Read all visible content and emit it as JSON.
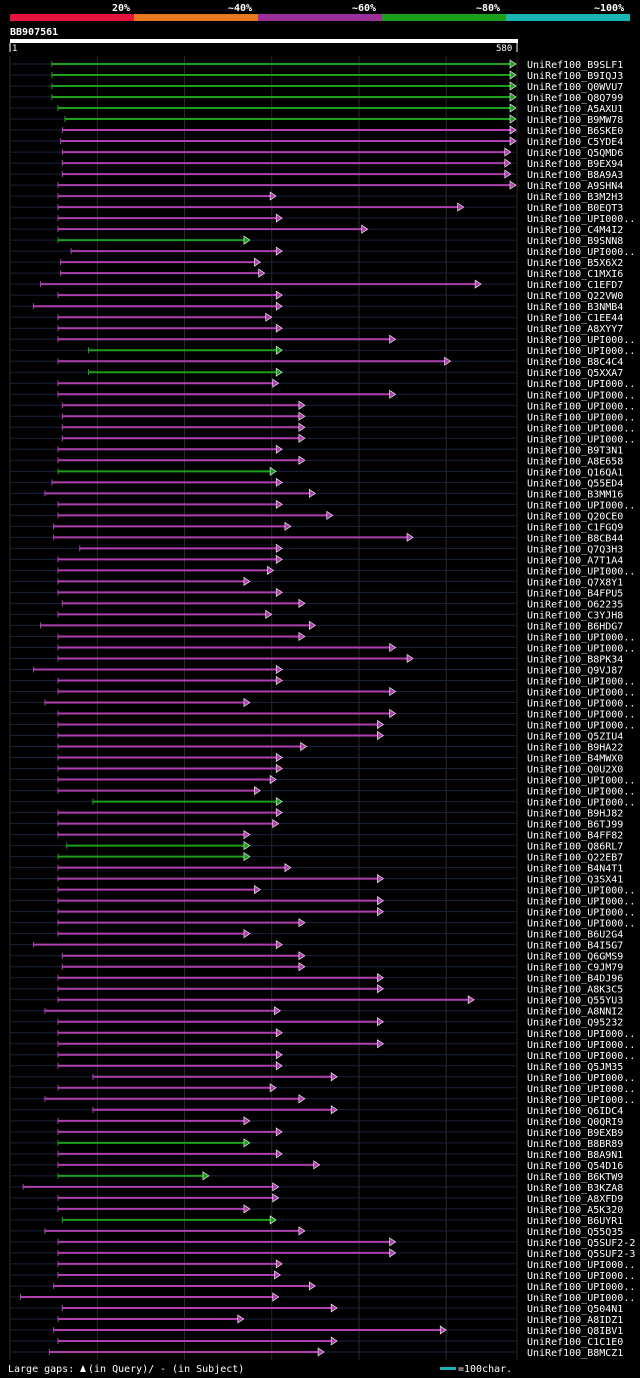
{
  "query": {
    "id": "BB907561",
    "length_start": "1",
    "length_end": "580"
  },
  "scale_labels": [
    "20%",
    "~40%",
    "~60%",
    "~80%",
    "~100%"
  ],
  "scale_colors": [
    "#e6143c",
    "#e8781e",
    "#9a2f9a",
    "#1aa01a",
    "#19b4b4"
  ],
  "line_colors": {
    "high": "#1aa01a",
    "mid": "#b040b0"
  },
  "hits": [
    {
      "name": "UniRef100_B9SLF1",
      "start": 48,
      "end": 580,
      "color": "high"
    },
    {
      "name": "UniRef100_B9IQJ3",
      "start": 48,
      "end": 580,
      "color": "high"
    },
    {
      "name": "UniRef100_Q0WVU7",
      "start": 48,
      "end": 580,
      "color": "high"
    },
    {
      "name": "UniRef100_Q8Q799",
      "start": 48,
      "end": 580,
      "color": "high"
    },
    {
      "name": "UniRef100_A5AXU1",
      "start": 55,
      "end": 580,
      "color": "high"
    },
    {
      "name": "UniRef100_B9MW78",
      "start": 63,
      "end": 580,
      "color": "high"
    },
    {
      "name": "UniRef100_B6SKE0",
      "start": 60,
      "end": 580,
      "color": "mid"
    },
    {
      "name": "UniRef100_C5YDE4",
      "start": 58,
      "end": 580,
      "color": "mid"
    },
    {
      "name": "UniRef100_Q5QMD6",
      "start": 60,
      "end": 574,
      "color": "mid"
    },
    {
      "name": "UniRef100_B9EX94",
      "start": 60,
      "end": 574,
      "color": "mid"
    },
    {
      "name": "UniRef100_B8A9A3",
      "start": 60,
      "end": 574,
      "color": "mid"
    },
    {
      "name": "UniRef100_A9SHN4",
      "start": 55,
      "end": 580,
      "color": "mid"
    },
    {
      "name": "UniRef100_B3M2H3",
      "start": 55,
      "end": 305,
      "color": "mid"
    },
    {
      "name": "UniRef100_B0EQT3",
      "start": 55,
      "end": 520,
      "color": "mid"
    },
    {
      "name": "UniRef100_UPI000..",
      "start": 55,
      "end": 312,
      "color": "mid"
    },
    {
      "name": "UniRef100_C4M4I2",
      "start": 55,
      "end": 410,
      "color": "mid"
    },
    {
      "name": "UniRef100_B9SNN8",
      "start": 55,
      "end": 275,
      "color": "high"
    },
    {
      "name": "UniRef100_UPI000..",
      "start": 70,
      "end": 312,
      "color": "mid"
    },
    {
      "name": "UniRef100_B5X6X2",
      "start": 58,
      "end": 287,
      "color": "mid"
    },
    {
      "name": "UniRef100_C1MXI6",
      "start": 58,
      "end": 292,
      "color": "mid"
    },
    {
      "name": "UniRef100_C1EFD7",
      "start": 35,
      "end": 540,
      "color": "mid"
    },
    {
      "name": "UniRef100_Q22VW0",
      "start": 55,
      "end": 312,
      "color": "mid"
    },
    {
      "name": "UniRef100_B3NMB4",
      "start": 27,
      "end": 312,
      "color": "mid"
    },
    {
      "name": "UniRef100_C1EE44",
      "start": 55,
      "end": 300,
      "color": "mid"
    },
    {
      "name": "UniRef100_A8XYY7",
      "start": 55,
      "end": 312,
      "color": "mid"
    },
    {
      "name": "UniRef100_UPI000..",
      "start": 55,
      "end": 442,
      "color": "mid"
    },
    {
      "name": "UniRef100_UPI000..",
      "start": 90,
      "end": 312,
      "color": "high"
    },
    {
      "name": "UniRef100_B8C4C4",
      "start": 55,
      "end": 505,
      "color": "mid"
    },
    {
      "name": "UniRef100_Q5XXA7",
      "start": 90,
      "end": 312,
      "color": "high"
    },
    {
      "name": "UniRef100_UPI000..",
      "start": 55,
      "end": 308,
      "color": "mid"
    },
    {
      "name": "UniRef100_UPI000..",
      "start": 55,
      "end": 442,
      "color": "mid"
    },
    {
      "name": "UniRef100_UPI000..",
      "start": 60,
      "end": 338,
      "color": "mid"
    },
    {
      "name": "UniRef100_UPI000..",
      "start": 60,
      "end": 338,
      "color": "mid"
    },
    {
      "name": "UniRef100_UPI000..",
      "start": 60,
      "end": 338,
      "color": "mid"
    },
    {
      "name": "UniRef100_UPI000..",
      "start": 60,
      "end": 338,
      "color": "mid"
    },
    {
      "name": "UniRef100_B9T3N1",
      "start": 55,
      "end": 312,
      "color": "mid"
    },
    {
      "name": "UniRef100_A8E658",
      "start": 55,
      "end": 338,
      "color": "mid"
    },
    {
      "name": "UniRef100_Q16QA1",
      "start": 55,
      "end": 305,
      "color": "high"
    },
    {
      "name": "UniRef100_Q55ED4",
      "start": 48,
      "end": 312,
      "color": "mid"
    },
    {
      "name": "UniRef100_B3MM16",
      "start": 40,
      "end": 350,
      "color": "mid"
    },
    {
      "name": "UniRef100_UPI000..",
      "start": 55,
      "end": 312,
      "color": "mid"
    },
    {
      "name": "UniRef100_Q20CE0",
      "start": 55,
      "end": 370,
      "color": "mid"
    },
    {
      "name": "UniRef100_C1FGQ9",
      "start": 50,
      "end": 322,
      "color": "mid"
    },
    {
      "name": "UniRef100_B8CB44",
      "start": 50,
      "end": 462,
      "color": "mid"
    },
    {
      "name": "UniRef100_Q7Q3H3",
      "start": 80,
      "end": 312,
      "color": "mid"
    },
    {
      "name": "UniRef100_A7T1A4",
      "start": 55,
      "end": 312,
      "color": "mid"
    },
    {
      "name": "UniRef100_UPI000..",
      "start": 55,
      "end": 302,
      "color": "mid"
    },
    {
      "name": "UniRef100_Q7X8Y1",
      "start": 55,
      "end": 275,
      "color": "mid"
    },
    {
      "name": "UniRef100_B4FPU5",
      "start": 55,
      "end": 312,
      "color": "mid"
    },
    {
      "name": "UniRef100_O62235",
      "start": 60,
      "end": 338,
      "color": "mid"
    },
    {
      "name": "UniRef100_C3YJH8",
      "start": 55,
      "end": 300,
      "color": "mid"
    },
    {
      "name": "UniRef100_B6HDG7",
      "start": 35,
      "end": 350,
      "color": "mid"
    },
    {
      "name": "UniRef100_UPI000..",
      "start": 55,
      "end": 338,
      "color": "mid"
    },
    {
      "name": "UniRef100_UPI000..",
      "start": 55,
      "end": 442,
      "color": "mid"
    },
    {
      "name": "UniRef100_B8PK34",
      "start": 55,
      "end": 462,
      "color": "mid"
    },
    {
      "name": "UniRef100_Q9VJ87",
      "start": 27,
      "end": 312,
      "color": "mid"
    },
    {
      "name": "UniRef100_UPI000..",
      "start": 55,
      "end": 312,
      "color": "mid"
    },
    {
      "name": "UniRef100_UPI000..",
      "start": 55,
      "end": 442,
      "color": "mid"
    },
    {
      "name": "UniRef100_UPI000..",
      "start": 40,
      "end": 275,
      "color": "mid"
    },
    {
      "name": "UniRef100_UPI000..",
      "start": 55,
      "end": 442,
      "color": "mid"
    },
    {
      "name": "UniRef100_UPI000..",
      "start": 55,
      "end": 428,
      "color": "mid"
    },
    {
      "name": "UniRef100_Q5ZIU4",
      "start": 55,
      "end": 428,
      "color": "mid"
    },
    {
      "name": "UniRef100_B9HA22",
      "start": 55,
      "end": 340,
      "color": "mid"
    },
    {
      "name": "UniRef100_B4MWX0",
      "start": 55,
      "end": 312,
      "color": "mid"
    },
    {
      "name": "UniRef100_Q0U2X0",
      "start": 55,
      "end": 312,
      "color": "mid"
    },
    {
      "name": "UniRef100_UPI000..",
      "start": 55,
      "end": 305,
      "color": "mid"
    },
    {
      "name": "UniRef100_UPI000..",
      "start": 55,
      "end": 287,
      "color": "mid"
    },
    {
      "name": "UniRef100_UPI000..",
      "start": 95,
      "end": 312,
      "color": "high"
    },
    {
      "name": "UniRef100_B9HJ82",
      "start": 55,
      "end": 312,
      "color": "mid"
    },
    {
      "name": "UniRef100_B6TJ99",
      "start": 55,
      "end": 308,
      "color": "mid"
    },
    {
      "name": "UniRef100_B4FF82",
      "start": 55,
      "end": 275,
      "color": "mid"
    },
    {
      "name": "UniRef100_Q86RL7",
      "start": 65,
      "end": 275,
      "color": "high"
    },
    {
      "name": "UniRef100_Q22EB7",
      "start": 55,
      "end": 275,
      "color": "high"
    },
    {
      "name": "UniRef100_B4N4T1",
      "start": 55,
      "end": 322,
      "color": "mid"
    },
    {
      "name": "UniRef100_Q3SX41",
      "start": 55,
      "end": 428,
      "color": "mid"
    },
    {
      "name": "UniRef100_UPI000..",
      "start": 55,
      "end": 287,
      "color": "mid"
    },
    {
      "name": "UniRef100_UPI000..",
      "start": 55,
      "end": 428,
      "color": "mid"
    },
    {
      "name": "UniRef100_UPI000..",
      "start": 55,
      "end": 428,
      "color": "mid"
    },
    {
      "name": "UniRef100_UPI000..",
      "start": 55,
      "end": 338,
      "color": "mid"
    },
    {
      "name": "UniRef100_B6U2G4",
      "start": 55,
      "end": 275,
      "color": "mid"
    },
    {
      "name": "UniRef100_B4I5G7",
      "start": 27,
      "end": 312,
      "color": "mid"
    },
    {
      "name": "UniRef100_Q6GMS9",
      "start": 60,
      "end": 338,
      "color": "mid"
    },
    {
      "name": "UniRef100_C9JM79",
      "start": 60,
      "end": 338,
      "color": "mid"
    },
    {
      "name": "UniRef100_B4DJ96",
      "start": 55,
      "end": 428,
      "color": "mid"
    },
    {
      "name": "UniRef100_A8K3C5",
      "start": 55,
      "end": 428,
      "color": "mid"
    },
    {
      "name": "UniRef100_Q55YU3",
      "start": 55,
      "end": 532,
      "color": "mid"
    },
    {
      "name": "UniRef100_A8NNI2",
      "start": 40,
      "end": 310,
      "color": "mid"
    },
    {
      "name": "UniRef100_Q95232",
      "start": 55,
      "end": 428,
      "color": "mid"
    },
    {
      "name": "UniRef100_UPI000..",
      "start": 55,
      "end": 312,
      "color": "mid"
    },
    {
      "name": "UniRef100_UPI000..",
      "start": 55,
      "end": 428,
      "color": "mid"
    },
    {
      "name": "UniRef100_UPI000..",
      "start": 55,
      "end": 312,
      "color": "mid"
    },
    {
      "name": "UniRef100_Q5JM35",
      "start": 55,
      "end": 312,
      "color": "mid"
    },
    {
      "name": "UniRef100_UPI000..",
      "start": 95,
      "end": 375,
      "color": "mid"
    },
    {
      "name": "UniRef100_UPI000..",
      "start": 55,
      "end": 305,
      "color": "mid"
    },
    {
      "name": "UniRef100_UPI000..",
      "start": 40,
      "end": 338,
      "color": "mid"
    },
    {
      "name": "UniRef100_Q6IDC4",
      "start": 95,
      "end": 375,
      "color": "mid"
    },
    {
      "name": "UniRef100_Q0QRI9",
      "start": 55,
      "end": 275,
      "color": "mid"
    },
    {
      "name": "UniRef100_B9EXB9",
      "start": 55,
      "end": 312,
      "color": "mid"
    },
    {
      "name": "UniRef100_B8BR89",
      "start": 55,
      "end": 275,
      "color": "high"
    },
    {
      "name": "UniRef100_B8A9N1",
      "start": 55,
      "end": 312,
      "color": "mid"
    },
    {
      "name": "UniRef100_Q54D16",
      "start": 55,
      "end": 355,
      "color": "mid"
    },
    {
      "name": "UniRef100_B6KTW9",
      "start": 55,
      "end": 228,
      "color": "high"
    },
    {
      "name": "UniRef100_B3KZA8",
      "start": 15,
      "end": 308,
      "color": "mid"
    },
    {
      "name": "UniRef100_A8XFD9",
      "start": 55,
      "end": 308,
      "color": "mid"
    },
    {
      "name": "UniRef100_A5K320",
      "start": 55,
      "end": 275,
      "color": "mid"
    },
    {
      "name": "UniRef100_B6UYR1",
      "start": 60,
      "end": 305,
      "color": "high"
    },
    {
      "name": "UniRef100_Q55Q35",
      "start": 40,
      "end": 338,
      "color": "mid"
    },
    {
      "name": "UniRef100_Q5SUF2-2",
      "start": 55,
      "end": 442,
      "color": "mid"
    },
    {
      "name": "UniRef100_Q5SUF2-3",
      "start": 55,
      "end": 442,
      "color": "mid"
    },
    {
      "name": "UniRef100_UPI000..",
      "start": 55,
      "end": 312,
      "color": "mid"
    },
    {
      "name": "UniRef100_UPI000..",
      "start": 55,
      "end": 310,
      "color": "mid"
    },
    {
      "name": "UniRef100_UPI000..",
      "start": 50,
      "end": 350,
      "color": "mid"
    },
    {
      "name": "UniRef100_UPI000..",
      "start": 12,
      "end": 308,
      "color": "mid"
    },
    {
      "name": "UniRef100_Q504N1",
      "start": 60,
      "end": 375,
      "color": "mid"
    },
    {
      "name": "UniRef100_A8IDZ1",
      "start": 55,
      "end": 268,
      "color": "mid"
    },
    {
      "name": "UniRef100_Q8IBV1",
      "start": 50,
      "end": 500,
      "color": "mid"
    },
    {
      "name": "UniRef100_C1C1E0",
      "start": 55,
      "end": 375,
      "color": "mid"
    },
    {
      "name": "UniRef100_B8MCZ1",
      "start": 45,
      "end": 360,
      "color": "mid"
    }
  ],
  "footer": {
    "legend_text": "Large gaps: ",
    "query_gap_text": "(in Query)/",
    "subject_gap_text": "- (in Subject)",
    "scale_text": "=100char."
  }
}
